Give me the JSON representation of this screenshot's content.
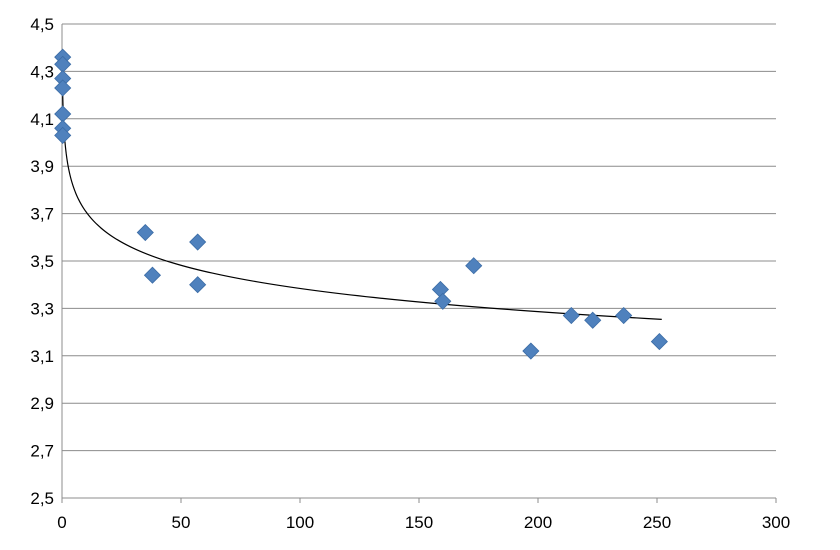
{
  "chart_data": {
    "type": "scatter",
    "title": "",
    "xlabel": "",
    "ylabel": "",
    "xlim": [
      0,
      300
    ],
    "ylim": [
      2.5,
      4.5
    ],
    "xticks": [
      0,
      50,
      100,
      150,
      200,
      250,
      300
    ],
    "yticks": [
      2.5,
      2.7,
      2.9,
      3.1,
      3.3,
      3.5,
      3.7,
      3.9,
      4.1,
      4.3,
      4.5
    ],
    "x_tick_labels": [
      "0",
      "50",
      "100",
      "150",
      "200",
      "250",
      "300"
    ],
    "y_tick_labels": [
      "2,5",
      "2,7",
      "2,9",
      "3,1",
      "3,3",
      "3,5",
      "3,7",
      "3,9",
      "4,1",
      "4,3",
      "4,5"
    ],
    "grid": "horizontal",
    "legend": "none",
    "marker": "diamond",
    "marker_color": "#4f81bd",
    "trendline": {
      "type": "logarithmic",
      "color": "#000000",
      "x_range": [
        0.1,
        252
      ]
    },
    "series": [
      {
        "points": [
          [
            0.3,
            4.36
          ],
          [
            0.3,
            4.33
          ],
          [
            0.3,
            4.27
          ],
          [
            0.3,
            4.23
          ],
          [
            0.3,
            4.12
          ],
          [
            0.3,
            4.06
          ],
          [
            0.3,
            4.03
          ],
          [
            35,
            3.62
          ],
          [
            38,
            3.44
          ],
          [
            57,
            3.58
          ],
          [
            57,
            3.4
          ],
          [
            159,
            3.38
          ],
          [
            160,
            3.33
          ],
          [
            173,
            3.48
          ],
          [
            197,
            3.12
          ],
          [
            214,
            3.27
          ],
          [
            223,
            3.25
          ],
          [
            236,
            3.27
          ],
          [
            251,
            3.16
          ]
        ]
      }
    ]
  }
}
